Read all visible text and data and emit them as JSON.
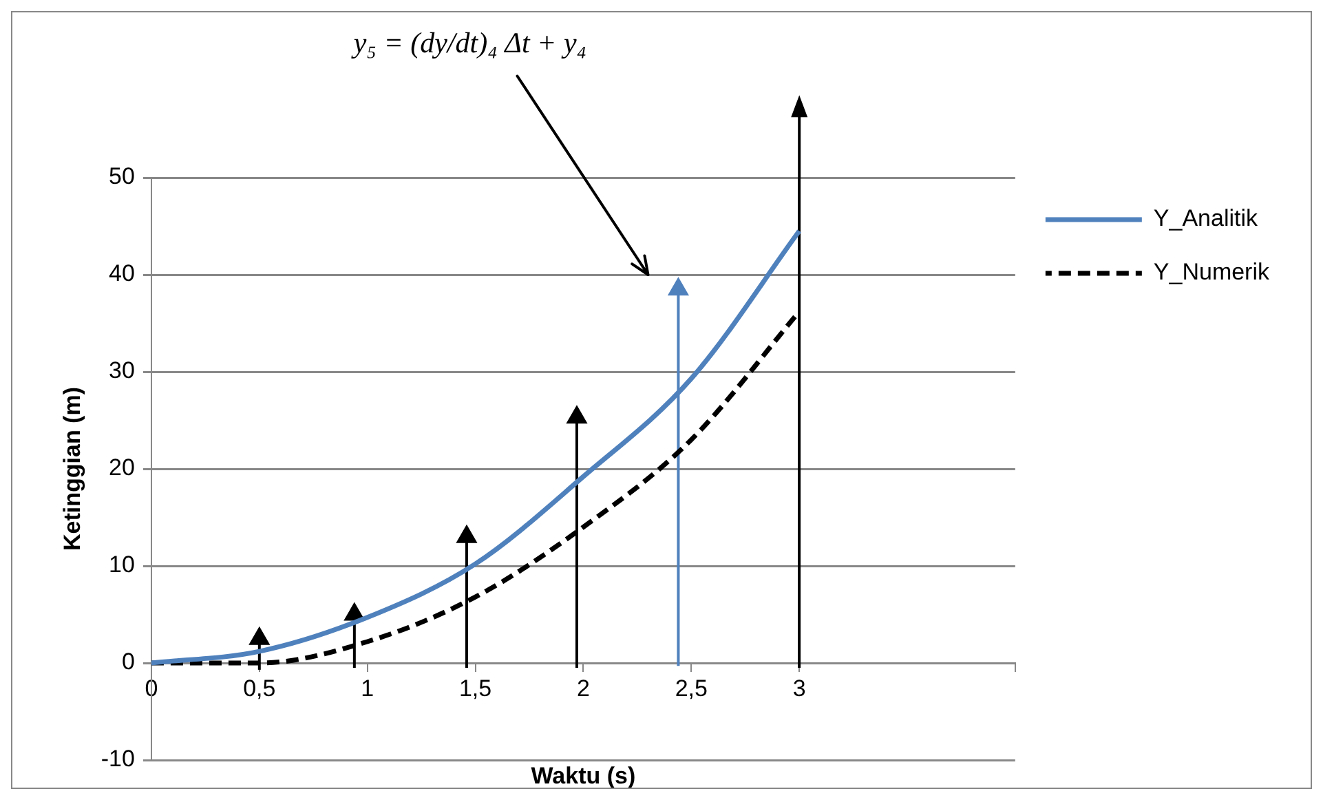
{
  "chart_data": {
    "type": "line",
    "xlabel": "Waktu (s)",
    "ylabel": "Ketinggian (m)",
    "x": [
      0,
      0.5,
      1,
      1.5,
      2,
      2.5,
      3
    ],
    "series": [
      {
        "name": "Y_Analitik",
        "color": "#4f81bd",
        "line_style": "solid",
        "values": [
          0,
          1.2,
          4.7,
          10.2,
          19.2,
          29.3,
          44.5
        ]
      },
      {
        "name": "Y_Numerik",
        "color": "#000000",
        "line_style": "dashed",
        "values": [
          0,
          0,
          2.2,
          6.8,
          14,
          23,
          36.2
        ]
      },
      {
        "color": "#000000",
        "marker": "triangle",
        "x": [
          0.5,
          0.5
        ],
        "values": [
          -0.7,
          2.5
        ]
      },
      {
        "color": "#000000",
        "marker": "triangle",
        "x": [
          0.94,
          0.94
        ],
        "values": [
          -0.5,
          5
        ]
      },
      {
        "color": "#000000",
        "marker": "triangle",
        "x": [
          1.46,
          1.46
        ],
        "values": [
          -0.5,
          13
        ]
      },
      {
        "color": "#000000",
        "marker": "triangle",
        "x": [
          1.97,
          1.97
        ],
        "values": [
          -0.5,
          25.3
        ]
      },
      {
        "color": "#4f81bd",
        "marker": "triangle",
        "x": [
          2.44,
          2.44
        ],
        "values": [
          -0.3,
          38.5
        ]
      },
      {
        "color": "#000000",
        "x": [
          3,
          3
        ],
        "values": [
          -0.5,
          50
        ]
      }
    ],
    "xlim": [
      0,
      4
    ],
    "xticks": [
      0,
      {
        "value": 0.5,
        "label": "0,5"
      },
      1,
      {
        "value": 1.5,
        "label": "1,5"
      },
      2,
      {
        "value": 2.5,
        "label": "2,5"
      },
      3,
      {
        "value": 4,
        "label": null
      }
    ],
    "ylim": [
      -10,
      50
    ],
    "yticks": [
      -10,
      0,
      10,
      20,
      30,
      40,
      50
    ],
    "grid": "y",
    "legend": "top right",
    "marker": "none",
    "annotations": [
      "y₅ = (dy/dt)₄ Δt + y₄"
    ]
  }
}
